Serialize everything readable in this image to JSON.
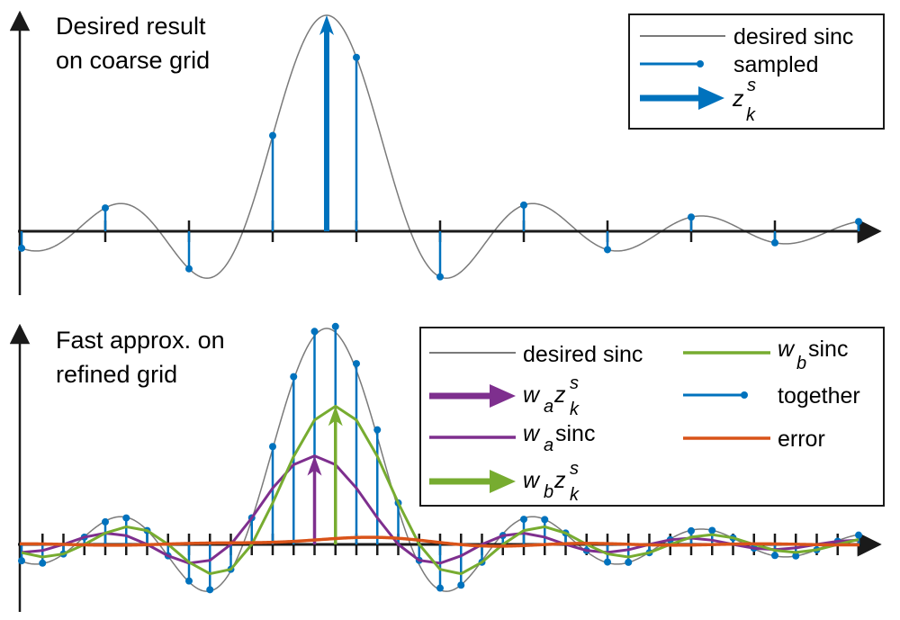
{
  "colors": {
    "sinc": "#7a7a7a",
    "stem": "#0072BD",
    "wa": "#7E2F8E",
    "wb": "#77AC30",
    "error": "#D95319",
    "axis": "#1a1a1a"
  },
  "top": {
    "title_line1": "Desired result",
    "title_line2": "on coarse grid",
    "legend": {
      "desired": "desired sinc",
      "sampled": "sampled",
      "z": "z",
      "z_sup": "s",
      "z_sub": "k"
    }
  },
  "bottom": {
    "title_line1": "Fast approx. on",
    "title_line2": "refined grid",
    "legend": {
      "desired": "desired sinc",
      "wa_z_w": "w",
      "wa_z_sub_a": "a",
      "wa_z_z": "z",
      "wa_z_sup": "s",
      "wa_z_sub_k": "k",
      "wa_sinc_w": "w",
      "wa_sinc_sub": "a",
      "wa_sinc_text": "sinc",
      "wb_z_w": "w",
      "wb_z_sub_b": "b",
      "wb_z_z": "z",
      "wb_z_sup": "s",
      "wb_z_sub_k": "k",
      "wb_sinc_w": "w",
      "wb_sinc_sub": "b",
      "wb_sinc_text": "sinc",
      "together": "together",
      "error": "error"
    }
  },
  "chart_data": [
    {
      "type": "stem",
      "title": "Desired result on coarse grid",
      "grid": {
        "start": 0,
        "step": 1,
        "count": 11
      },
      "sinc_center": 3.645,
      "sinc_amplitude": 1.0,
      "ylim": [
        -0.35,
        1.05
      ],
      "series": [
        "desired sinc",
        "sampled",
        "z_k^s"
      ]
    },
    {
      "type": "stem",
      "title": "Fast approx. on refined grid",
      "grid": {
        "start": 0,
        "step": 0.25,
        "count": 41
      },
      "sinc_center": 3.645,
      "wa": {
        "weight": 0.41,
        "center": 3.5
      },
      "wb": {
        "weight": 0.64,
        "center": 3.75
      },
      "ylim": [
        -0.35,
        1.05
      ],
      "series": [
        "desired sinc",
        "w_a z_k^s",
        "w_a sinc",
        "w_b z_k^s",
        "w_b sinc",
        "together",
        "error"
      ]
    }
  ]
}
